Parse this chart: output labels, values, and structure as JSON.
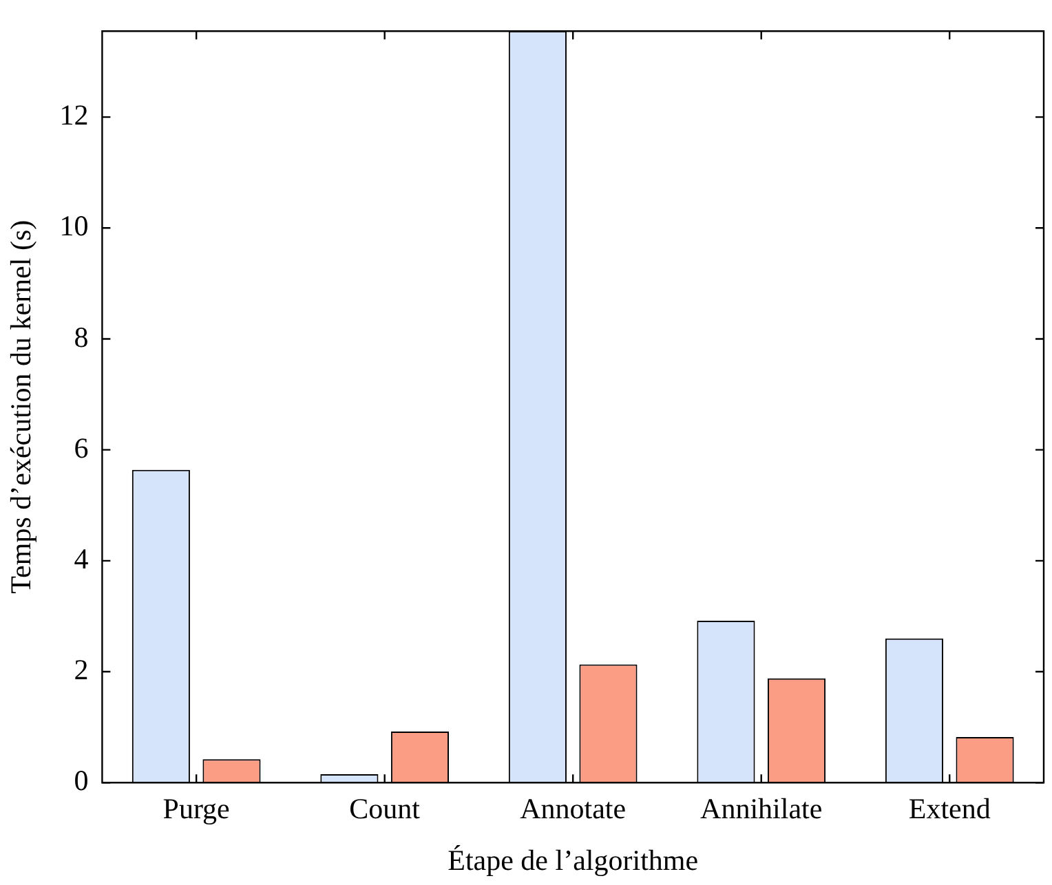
{
  "chart_data": {
    "type": "bar",
    "xlabel": "Étape de l’algorithme",
    "ylabel": "Temps d’exécution du kernel (s)",
    "categories": [
      "Purge",
      "Count",
      "Annotate",
      "Annihilate",
      "Extend"
    ],
    "series": [
      {
        "color": "#d6e4fb",
        "values": [
          5.64,
          0.15,
          13.55,
          2.92,
          2.6
        ]
      },
      {
        "color": "#fb9c84",
        "values": [
          0.42,
          0.92,
          2.13,
          1.88,
          0.82
        ]
      }
    ],
    "ylim": [
      0,
      13.55
    ],
    "yticks": [
      0,
      2,
      4,
      6,
      8,
      10,
      12
    ],
    "grid": false
  }
}
